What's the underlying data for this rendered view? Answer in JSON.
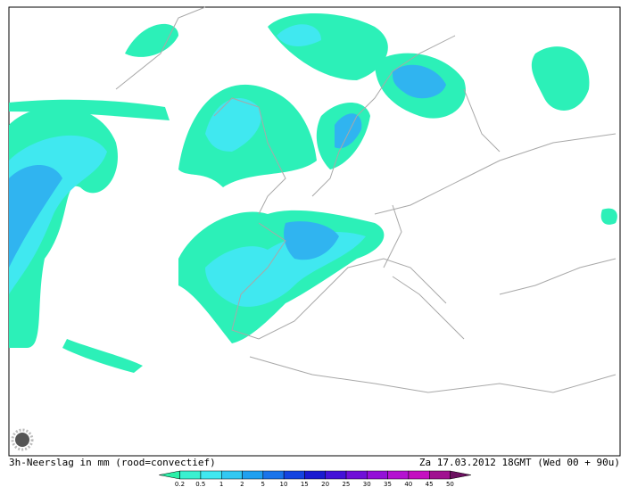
{
  "map": {
    "caption_left": "3h-Neerslag in mm (rood=convectief)",
    "caption_right": "Za 17.03.2012 18GMT (Wed 00 + 90u)",
    "legend": {
      "labels": [
        "0.2",
        "0.5",
        "1",
        "2",
        "5",
        "10",
        "15",
        "20",
        "25",
        "30",
        "35",
        "40",
        "45",
        "50"
      ],
      "colors": [
        "#2cf0a8",
        "#3af0d0",
        "#40e8f0",
        "#32c8f2",
        "#20a0f0",
        "#1a74ea",
        "#1444e0",
        "#1a1ad0",
        "#4412d8",
        "#7010d8",
        "#9410d8",
        "#b412d0",
        "#c410c0",
        "#a01290",
        "#6c1060"
      ]
    }
  }
}
